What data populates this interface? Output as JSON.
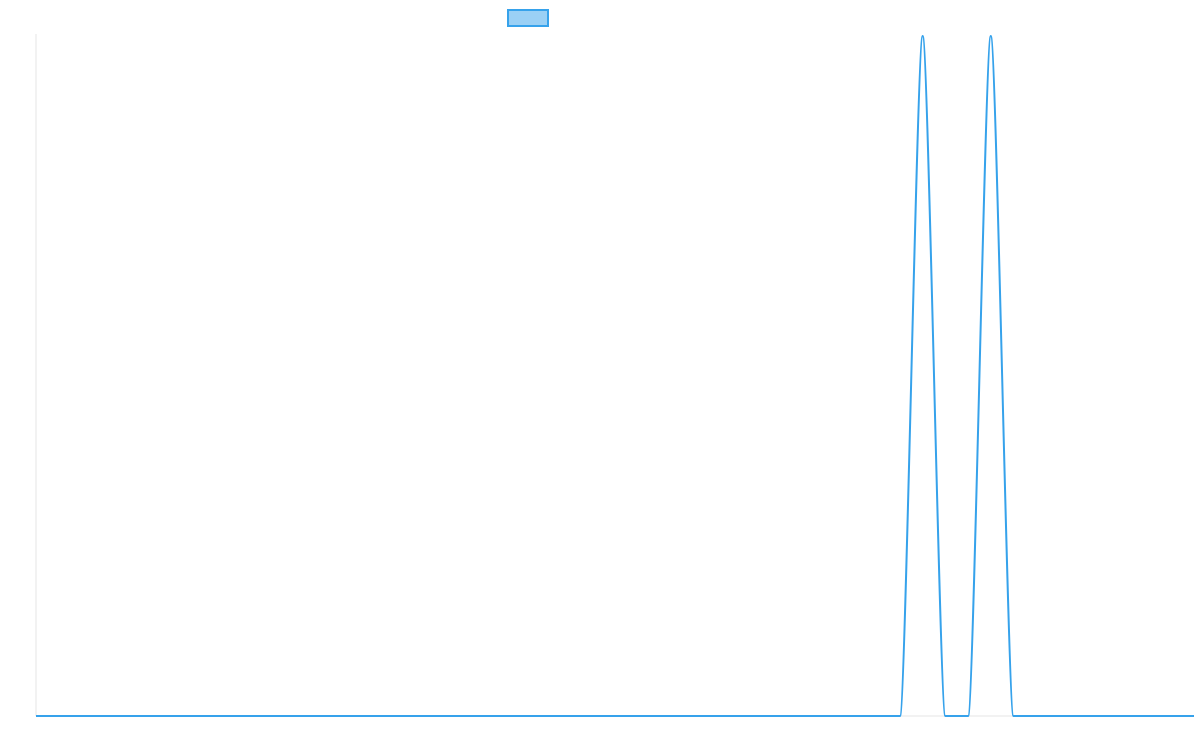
{
  "chart_data": {
    "type": "line",
    "title": "",
    "xlabel": "",
    "ylabel": "",
    "legend": {
      "placement": "top-center",
      "entries": [
        {
          "name": "",
          "color": "#36a2eb",
          "fill": "#9ad0f5"
        }
      ]
    },
    "grid": false,
    "ylim": [
      0,
      1
    ],
    "xlim": [
      0,
      51
    ],
    "series": [
      {
        "name": "",
        "color": "#36a2eb",
        "x": [
          0,
          38.05,
          39.05,
          40.05,
          41.05,
          42.05,
          43.05,
          44.05,
          51
        ],
        "y": [
          0,
          0,
          1,
          0,
          0,
          1,
          0,
          0,
          0
        ]
      }
    ]
  }
}
